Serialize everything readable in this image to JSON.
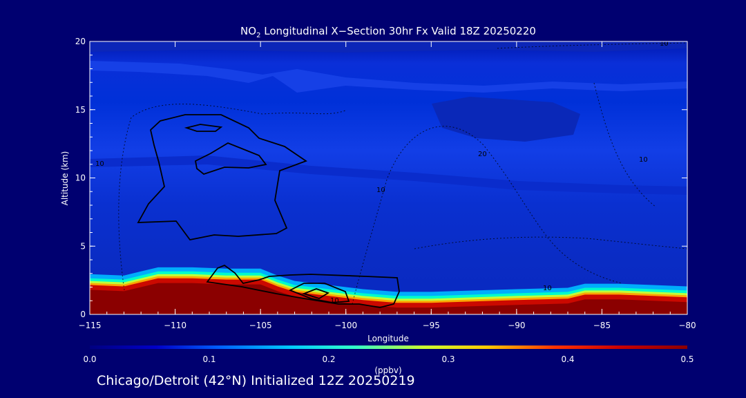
{
  "chart_data": {
    "type": "heatmap",
    "title": {
      "species": "NO",
      "species_subscript": "2",
      "rest": " Longitudinal X−Section 30hr  Fx Valid 18Z 20250220"
    },
    "xlabel": "Longitude",
    "ylabel": "Altitude (km)",
    "xlim": [
      -115,
      -80
    ],
    "ylim": [
      0,
      20
    ],
    "xticks": [
      -115,
      -110,
      -105,
      -100,
      -95,
      -90,
      -85,
      -80
    ],
    "xtick_labels": [
      "−115",
      "−110",
      "−105",
      "−100",
      "−95",
      "−90",
      "−85",
      "−80"
    ],
    "yticks": [
      0,
      5,
      10,
      15,
      20
    ],
    "colorbar": {
      "label": "(ppbv)",
      "range": [
        0.0,
        0.5
      ],
      "ticks": [
        "0.0",
        "0.1",
        "0.2",
        "0.3",
        "0.4",
        "0.5"
      ],
      "colors": [
        "#000080",
        "#0000c8",
        "#0064ff",
        "#00c8ff",
        "#32ffc8",
        "#c8ff32",
        "#ffc800",
        "#ff3200",
        "#c80000",
        "#8b0000"
      ]
    },
    "terrain_km": {
      "lon": [
        -115,
        -113,
        -112,
        -111,
        -109,
        -107,
        -105,
        -104,
        -103,
        -101,
        -99,
        -97,
        -95,
        -90,
        -87,
        -86,
        -84,
        -82,
        -80
      ],
      "alt": [
        1.6,
        1.5,
        1.8,
        2.1,
        2.1,
        2.0,
        2.0,
        1.5,
        1.1,
        0.8,
        0.5,
        0.3,
        0.3,
        0.5,
        0.6,
        0.9,
        0.9,
        0.8,
        0.7
      ]
    },
    "high_concentration_band": {
      "description_value_ppbv": 0.5,
      "note_levels": [
        "0.4",
        "0.5"
      ]
    },
    "contour_labels": [
      "10",
      "20",
      "10",
      "10",
      "10",
      "10",
      "10"
    ]
  },
  "footer": {
    "caption": "Chicago/Detroit (42°N) Initialized 12Z 20250219"
  }
}
